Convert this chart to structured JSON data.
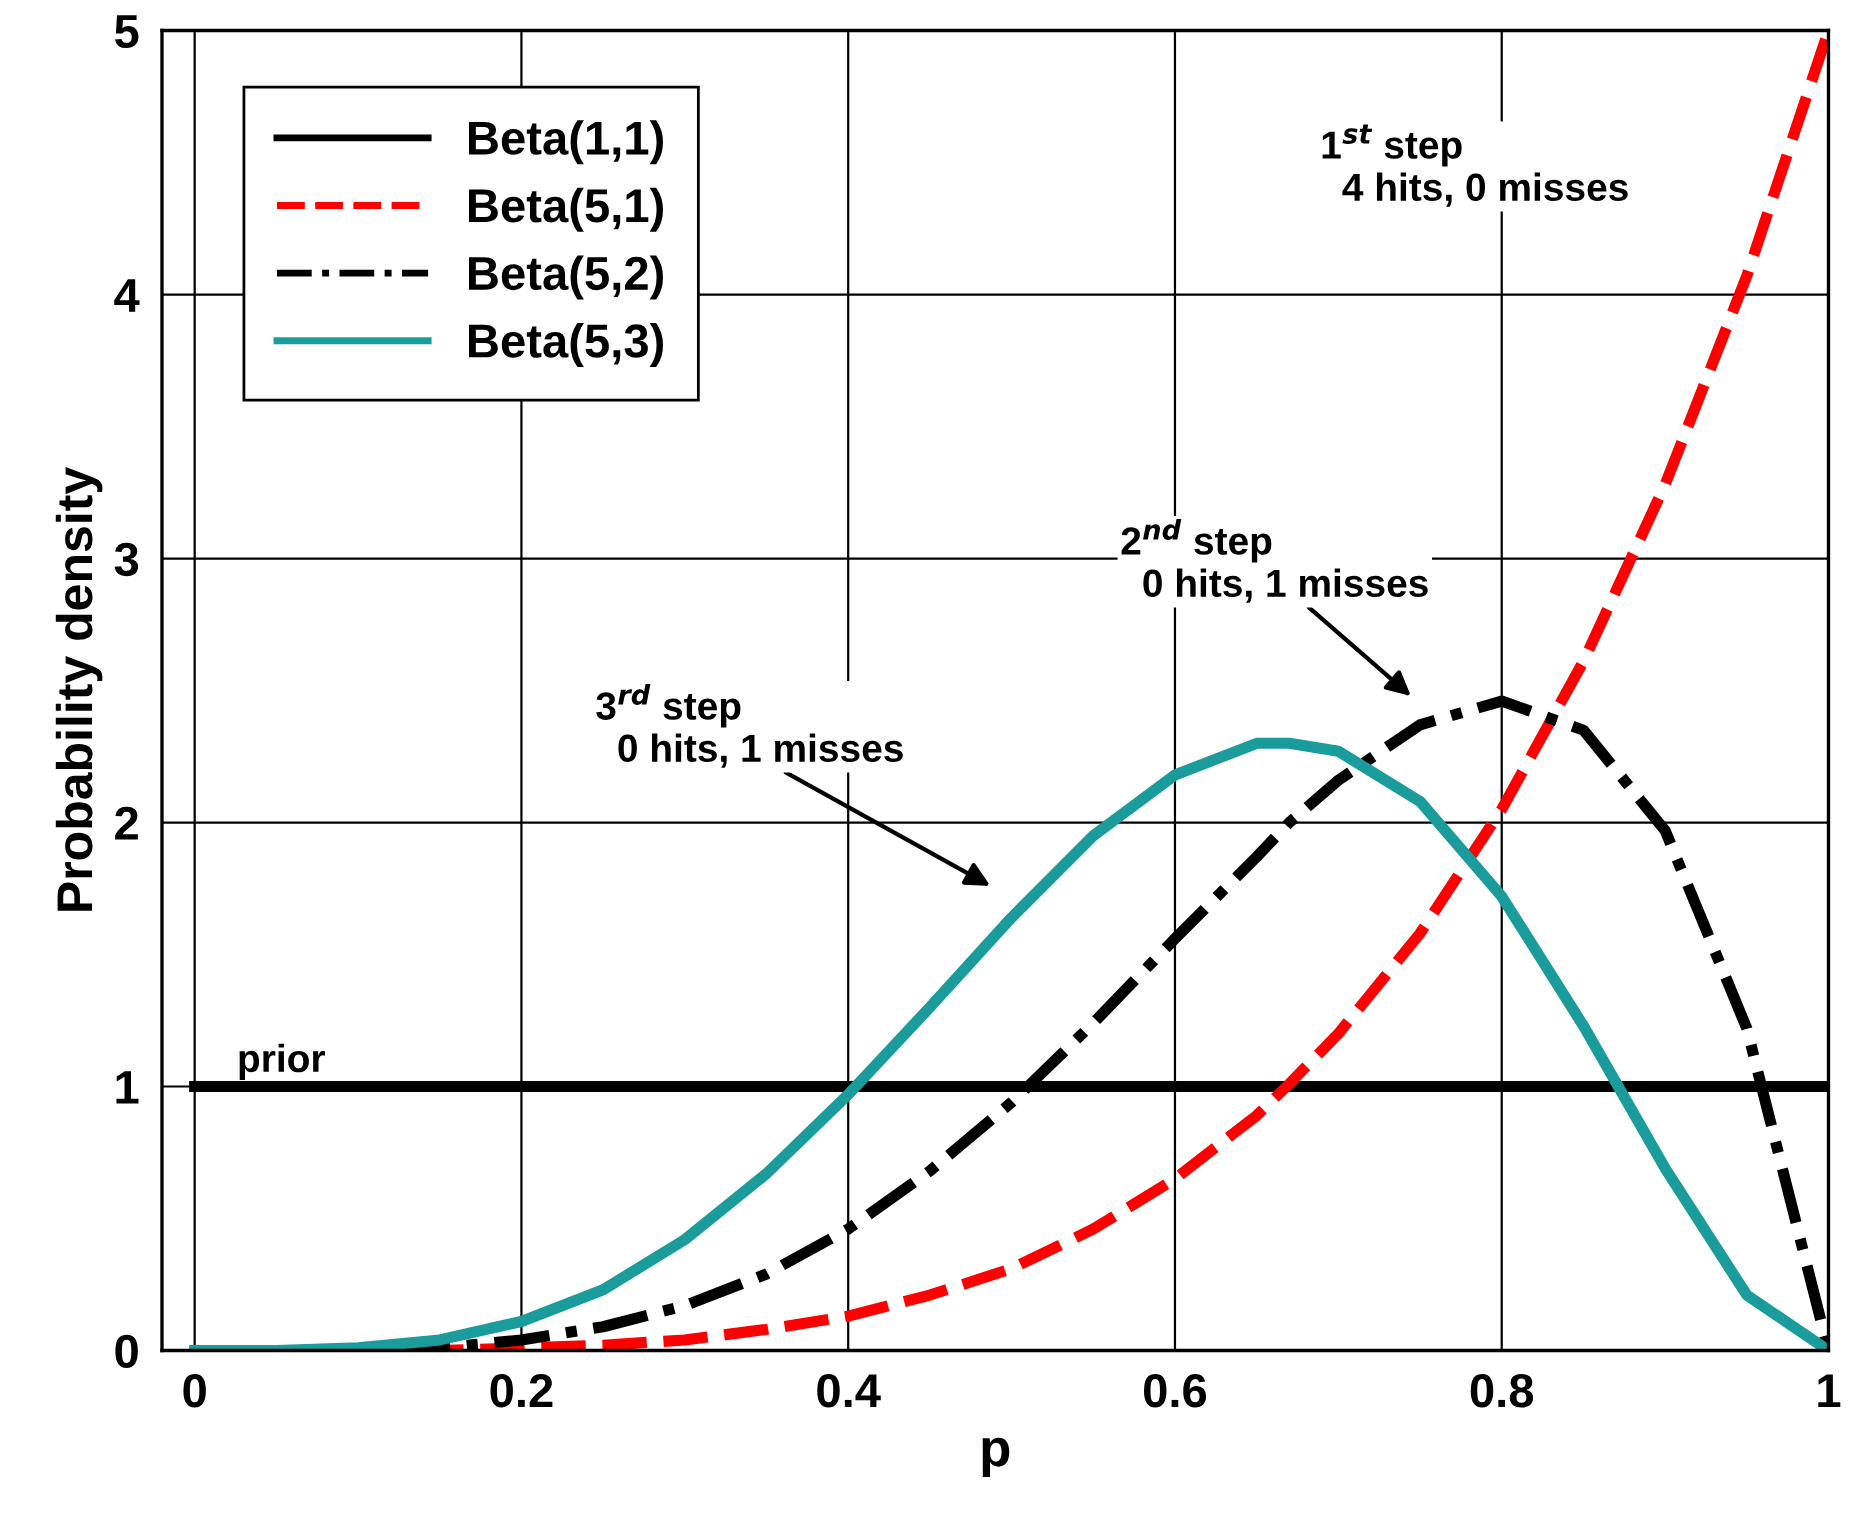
{
  "chart_data": {
    "type": "line",
    "xlabel": "p",
    "ylabel": "Probability density",
    "xlim": [
      -0.02,
      1
    ],
    "ylim": [
      0,
      5
    ],
    "xticks": [
      0,
      0.2,
      0.4,
      0.6,
      0.8,
      1
    ],
    "yticks": [
      0,
      1,
      2,
      3,
      4,
      5
    ],
    "grid": true,
    "legend": "top left",
    "marker": "none",
    "x": [
      0,
      0.05,
      0.1,
      0.15,
      0.2,
      0.25,
      0.3,
      0.35,
      0.4,
      0.45,
      0.5,
      0.55,
      0.6,
      0.65,
      0.67,
      0.7,
      0.75,
      0.8,
      0.85,
      0.9,
      0.95,
      1
    ],
    "series": [
      {
        "name": "Beta(1,1)",
        "color": "#000000",
        "line_style": "solid",
        "values": [
          1,
          1,
          1,
          1,
          1,
          1,
          1,
          1,
          1,
          1,
          1,
          1,
          1,
          1,
          1,
          1,
          1,
          1,
          1,
          1,
          1,
          1
        ]
      },
      {
        "name": "Beta(5,1)",
        "color": "#ff0000",
        "line_style": "dashed",
        "values": [
          null,
          null,
          0,
          0,
          0.01,
          0.02,
          0.04,
          0.08,
          0.13,
          0.21,
          0.31,
          0.46,
          0.65,
          0.89,
          1.01,
          1.2,
          1.58,
          2.05,
          2.61,
          3.28,
          4.07,
          5
        ]
      },
      {
        "name": "Beta(5,2)",
        "color": "#000000",
        "line_style": "dashdot",
        "values": [
          0,
          0,
          0,
          0.01,
          0.04,
          0.09,
          0.17,
          0.29,
          0.46,
          0.68,
          0.94,
          1.24,
          1.56,
          1.87,
          2.0,
          2.16,
          2.37,
          2.46,
          2.35,
          1.97,
          1.22,
          0
        ]
      },
      {
        "name": "Beta(5,3)",
        "color": "#1a9c9c",
        "line_style": "solid",
        "values": [
          0,
          0,
          0.01,
          0.04,
          0.11,
          0.23,
          0.42,
          0.67,
          0.97,
          1.3,
          1.64,
          1.95,
          2.18,
          2.3,
          2.3,
          2.27,
          2.08,
          1.72,
          1.23,
          0.69,
          0.21,
          0
        ]
      }
    ],
    "annotations": [
      "1$^{st}$ step\n  4 hits, 0 misses",
      "2$^{nd}$ step\n  0 hits, 1 misses",
      "3$^{rd}$ step\n  0 hits, 1 misses",
      "prior"
    ]
  }
}
